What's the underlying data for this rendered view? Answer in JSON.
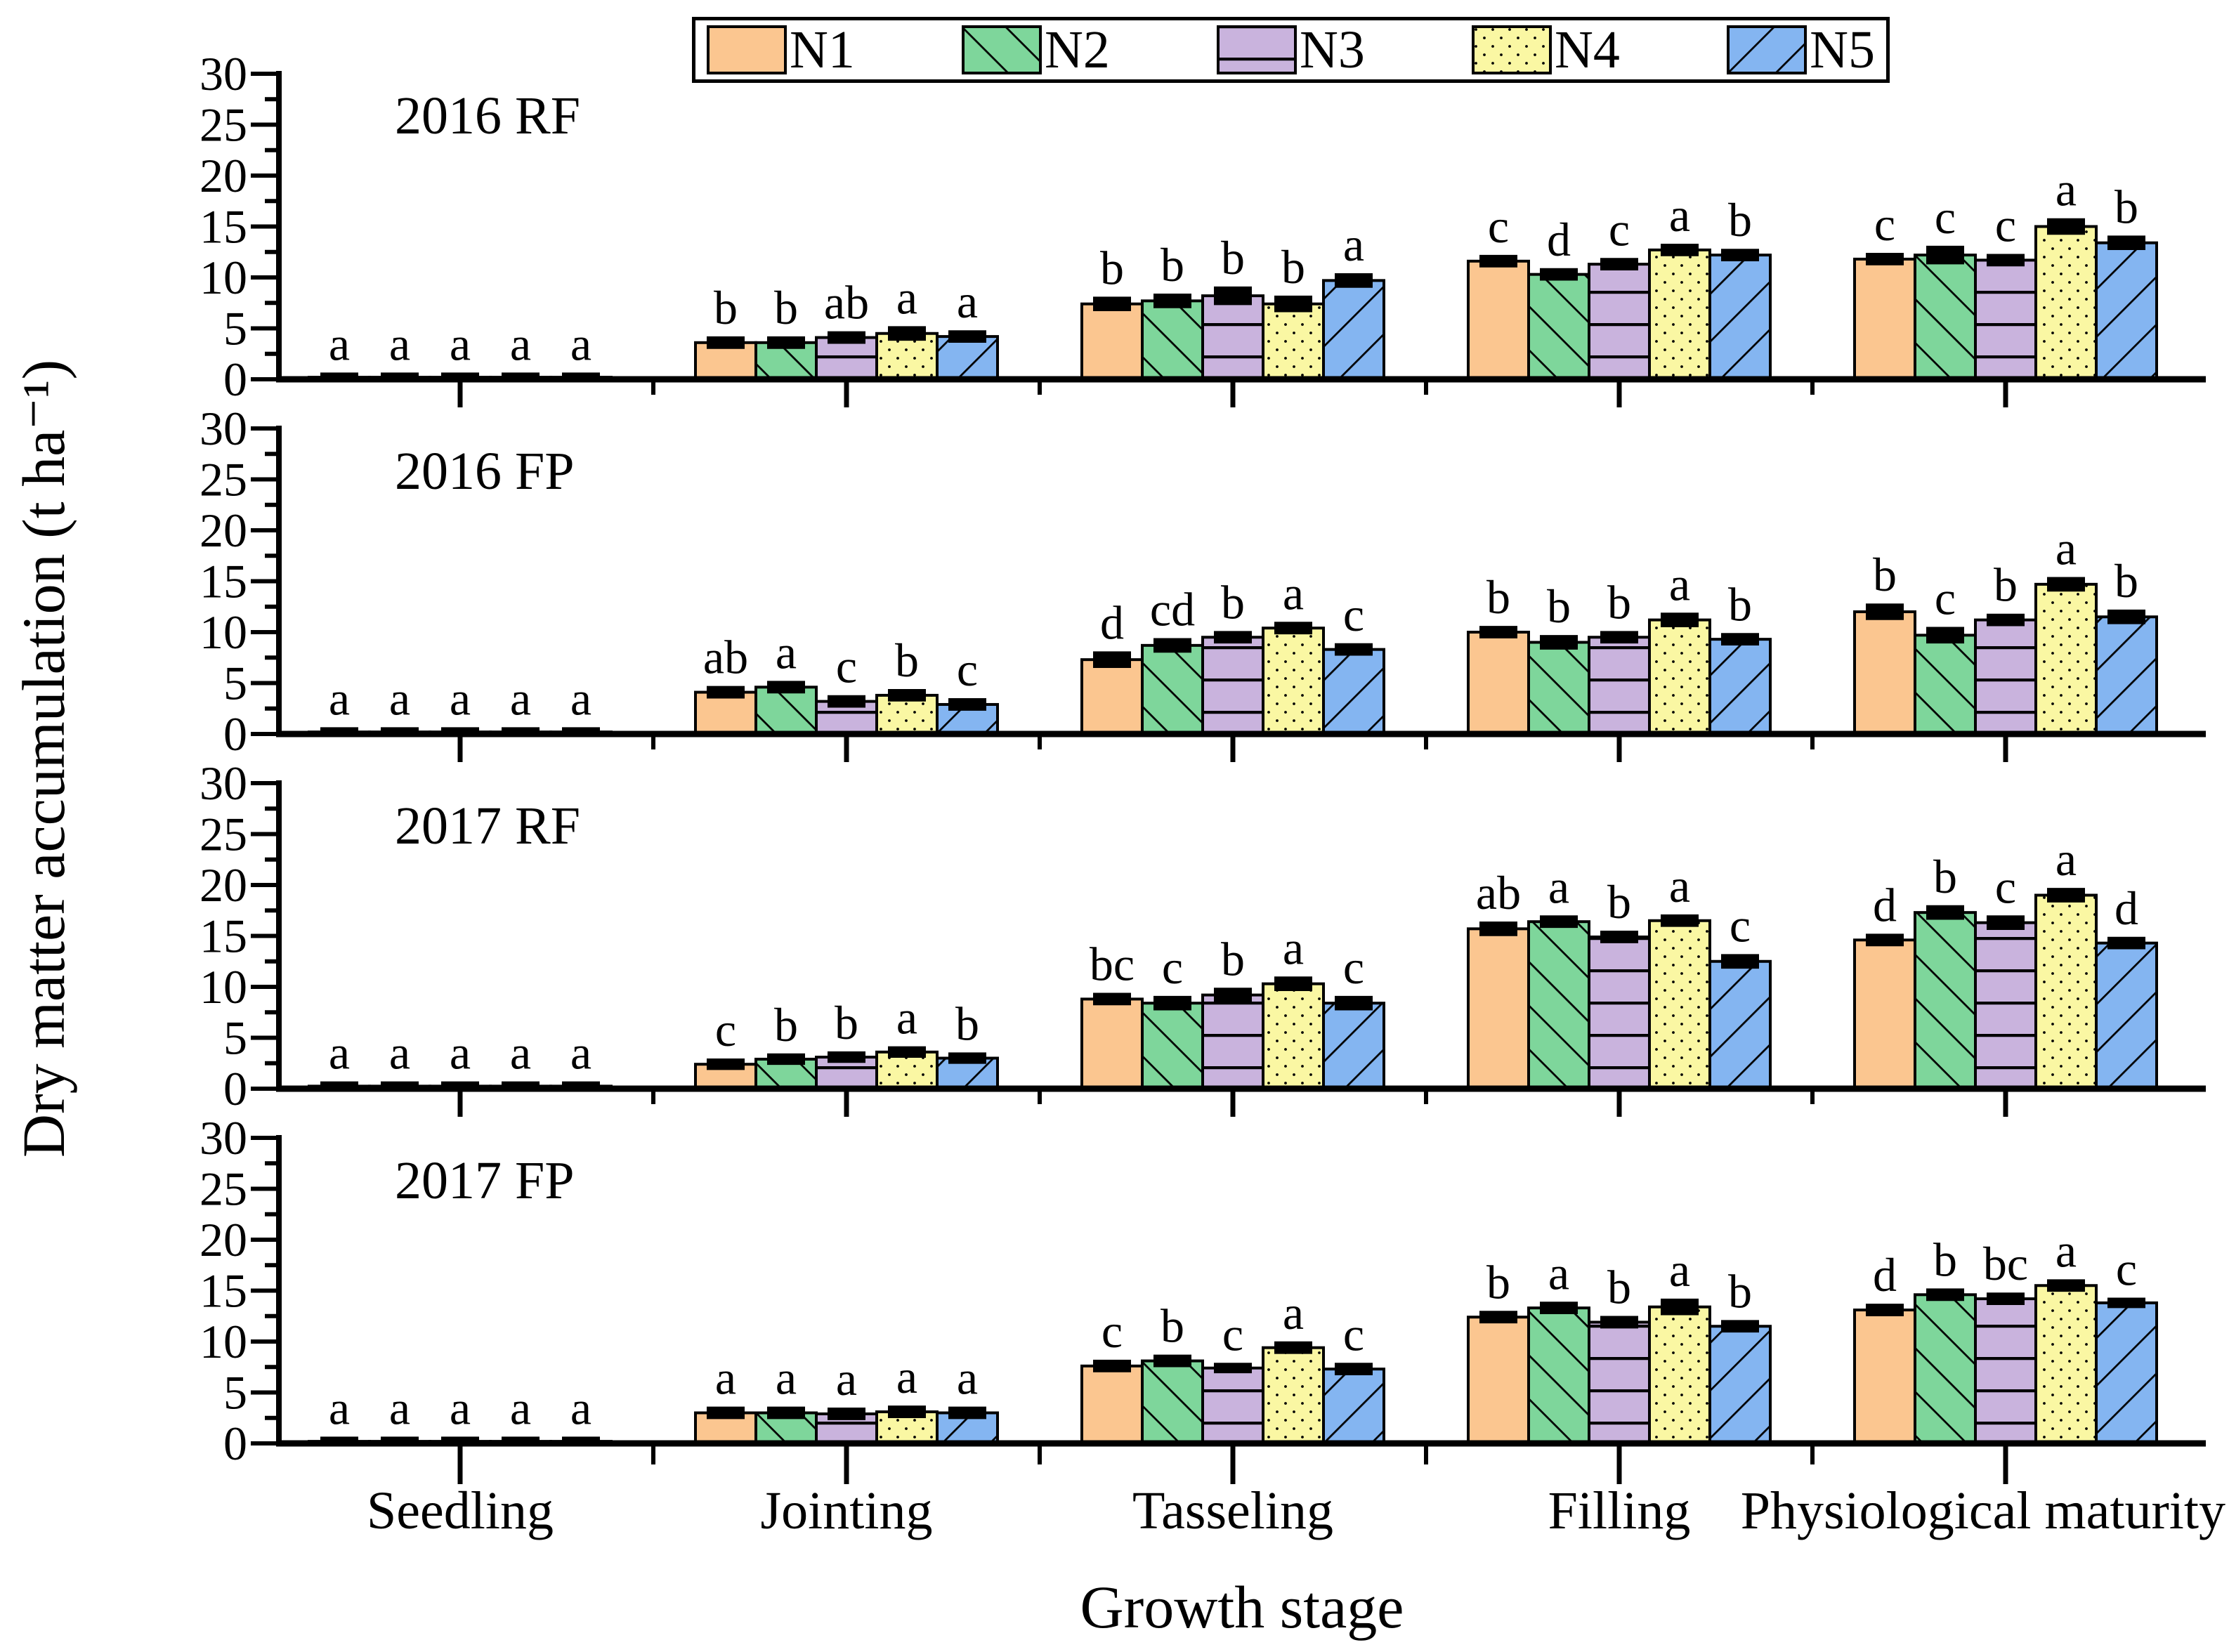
{
  "chart_data": {
    "type": "bar",
    "title": "",
    "xlabel": "Growth stage",
    "ylabel": "Dry matter accumulation (t ha⁻¹)",
    "ylim": [
      0,
      30
    ],
    "yticks": [
      0,
      5,
      10,
      15,
      20,
      25,
      30
    ],
    "grid": "off",
    "legend_position": "top-center",
    "categories": [
      "Seedling",
      "Jointing",
      "Tasseling",
      "Filling",
      "Physiological maturity"
    ],
    "series_names": [
      "N1",
      "N2",
      "N3",
      "N4",
      "N5"
    ],
    "series_styles": [
      {
        "name": "N1",
        "color": "#FBC690",
        "hatch": "none"
      },
      {
        "name": "N2",
        "color": "#7ED69B",
        "hatch": "down"
      },
      {
        "name": "N3",
        "color": "#C9B3DD",
        "hatch": "horizontal"
      },
      {
        "name": "N4",
        "color": "#FAF7A3",
        "hatch": "dots"
      },
      {
        "name": "N5",
        "color": "#84B5F1",
        "hatch": "up"
      }
    ],
    "legend": {
      "items": [
        {
          "label": "N1"
        },
        {
          "label": "N2"
        },
        {
          "label": "N3"
        },
        {
          "label": "N4"
        },
        {
          "label": "N5"
        }
      ]
    },
    "panels": [
      {
        "title": "2016 RF",
        "series": [
          {
            "name": "N1",
            "values": [
              0.2,
              3.6,
              7.4,
              11.6,
              11.8
            ],
            "err": [
              0.05,
              0.2,
              0.3,
              0.2,
              0.2
            ],
            "letters": [
              "a",
              "b",
              "b",
              "c",
              "c"
            ]
          },
          {
            "name": "N2",
            "values": [
              0.2,
              3.6,
              7.7,
              10.3,
              12.2
            ],
            "err": [
              0.05,
              0.2,
              0.3,
              0.2,
              0.5
            ],
            "letters": [
              "a",
              "b",
              "b",
              "d",
              "c"
            ]
          },
          {
            "name": "N3",
            "values": [
              0.2,
              4.1,
              8.2,
              11.3,
              11.7
            ],
            "err": [
              0.05,
              0.2,
              0.5,
              0.2,
              0.2
            ],
            "letters": [
              "a",
              "ab",
              "b",
              "c",
              "c"
            ]
          },
          {
            "name": "N4",
            "values": [
              0.2,
              4.5,
              7.4,
              12.7,
              15.0
            ],
            "err": [
              0.05,
              0.3,
              0.4,
              0.2,
              0.4
            ],
            "letters": [
              "a",
              "a",
              "b",
              "a",
              "a"
            ]
          },
          {
            "name": "N5",
            "values": [
              0.2,
              4.2,
              9.7,
              12.2,
              13.4
            ],
            "err": [
              0.05,
              0.2,
              0.3,
              0.2,
              0.3
            ],
            "letters": [
              "a",
              "a",
              "a",
              "b",
              "b"
            ]
          }
        ]
      },
      {
        "title": "2016 FP",
        "series": [
          {
            "name": "N1",
            "values": [
              0.2,
              4.1,
              7.3,
              10.0,
              12.0
            ],
            "err": [
              0.05,
              0.2,
              0.4,
              0.2,
              0.4
            ],
            "letters": [
              "a",
              "ab",
              "d",
              "b",
              "b"
            ]
          },
          {
            "name": "N2",
            "values": [
              0.2,
              4.6,
              8.7,
              9.0,
              9.7
            ],
            "err": [
              0.05,
              0.2,
              0.3,
              0.3,
              0.4
            ],
            "letters": [
              "a",
              "a",
              "cd",
              "b",
              "c"
            ]
          },
          {
            "name": "N3",
            "values": [
              0.2,
              3.2,
              9.5,
              9.5,
              11.2
            ],
            "err": [
              0.05,
              0.2,
              0.2,
              0.2,
              0.2
            ],
            "letters": [
              "a",
              "c",
              "b",
              "b",
              "b"
            ]
          },
          {
            "name": "N4",
            "values": [
              0.2,
              3.8,
              10.4,
              11.2,
              14.7
            ],
            "err": [
              0.05,
              0.2,
              0.2,
              0.3,
              0.3
            ],
            "letters": [
              "a",
              "b",
              "a",
              "a",
              "a"
            ]
          },
          {
            "name": "N5",
            "values": [
              0.2,
              2.9,
              8.3,
              9.3,
              11.5
            ],
            "err": [
              0.05,
              0.2,
              0.2,
              0.2,
              0.3
            ],
            "letters": [
              "a",
              "c",
              "c",
              "b",
              "b"
            ]
          }
        ]
      },
      {
        "title": "2017 RF",
        "series": [
          {
            "name": "N1",
            "values": [
              0.25,
              2.4,
              8.8,
              15.7,
              14.6
            ],
            "err": [
              0.05,
              0.15,
              0.2,
              0.3,
              0.2
            ],
            "letters": [
              "a",
              "c",
              "bc",
              "ab",
              "d"
            ]
          },
          {
            "name": "N2",
            "values": [
              0.25,
              2.9,
              8.4,
              16.4,
              17.3
            ],
            "err": [
              0.05,
              0.15,
              0.3,
              0.2,
              0.3
            ],
            "letters": [
              "a",
              "b",
              "c",
              "a",
              "b"
            ]
          },
          {
            "name": "N3",
            "values": [
              0.25,
              3.1,
              9.2,
              14.9,
              16.3
            ],
            "err": [
              0.05,
              0.15,
              0.3,
              0.2,
              0.3
            ],
            "letters": [
              "a",
              "b",
              "b",
              "b",
              "c"
            ]
          },
          {
            "name": "N4",
            "values": [
              0.25,
              3.6,
              10.3,
              16.5,
              19.0
            ],
            "err": [
              0.05,
              0.15,
              0.3,
              0.2,
              0.3
            ],
            "letters": [
              "a",
              "a",
              "a",
              "a",
              "a"
            ]
          },
          {
            "name": "N5",
            "values": [
              0.25,
              3.0,
              8.4,
              12.5,
              14.3
            ],
            "err": [
              0.05,
              0.15,
              0.3,
              0.3,
              0.2
            ],
            "letters": [
              "a",
              "b",
              "c",
              "c",
              "d"
            ]
          }
        ]
      },
      {
        "title": "2017 FP",
        "series": [
          {
            "name": "N1",
            "values": [
              0.2,
              3.0,
              7.6,
              12.4,
              13.1
            ],
            "err": [
              0.05,
              0.2,
              0.2,
              0.2,
              0.2
            ],
            "letters": [
              "a",
              "a",
              "c",
              "b",
              "d"
            ]
          },
          {
            "name": "N2",
            "values": [
              0.2,
              3.0,
              8.1,
              13.3,
              14.6
            ],
            "err": [
              0.05,
              0.2,
              0.2,
              0.2,
              0.2
            ],
            "letters": [
              "a",
              "a",
              "b",
              "a",
              "b"
            ]
          },
          {
            "name": "N3",
            "values": [
              0.2,
              2.9,
              7.4,
              11.9,
              14.2
            ],
            "err": [
              0.05,
              0.2,
              0.1,
              0.2,
              0.2
            ],
            "letters": [
              "a",
              "a",
              "c",
              "b",
              "bc"
            ]
          },
          {
            "name": "N4",
            "values": [
              0.2,
              3.1,
              9.4,
              13.4,
              15.5
            ],
            "err": [
              0.05,
              0.2,
              0.2,
              0.4,
              0.2
            ],
            "letters": [
              "a",
              "a",
              "a",
              "a",
              "a"
            ]
          },
          {
            "name": "N5",
            "values": [
              0.2,
              3.0,
              7.3,
              11.5,
              13.8
            ],
            "err": [
              0.05,
              0.2,
              0.2,
              0.2,
              0.1
            ],
            "letters": [
              "a",
              "a",
              "c",
              "b",
              "c"
            ]
          }
        ]
      }
    ]
  }
}
